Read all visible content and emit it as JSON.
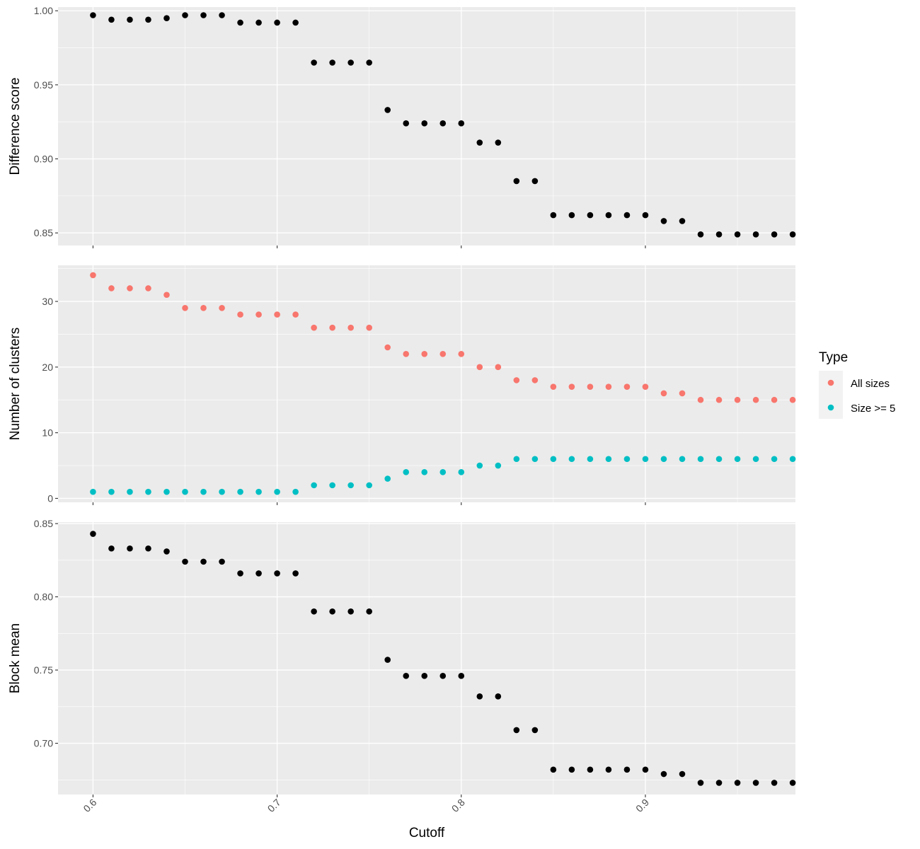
{
  "chart_data": {
    "type": "scatter",
    "xlabel": "Cutoff",
    "x_ticks": [
      "0.6",
      "0.7",
      "0.8",
      "0.9"
    ],
    "x_tick_values": [
      0.6,
      0.7,
      0.8,
      0.9
    ],
    "xlim": [
      0.581,
      0.9815
    ],
    "x": [
      0.6,
      0.61,
      0.62,
      0.63,
      0.64,
      0.65,
      0.66,
      0.67,
      0.68,
      0.69,
      0.7,
      0.71,
      0.72,
      0.73,
      0.74,
      0.75,
      0.76,
      0.77,
      0.78,
      0.79,
      0.8,
      0.81,
      0.82,
      0.83,
      0.84,
      0.85,
      0.86,
      0.87,
      0.88,
      0.89,
      0.9,
      0.91,
      0.92,
      0.93,
      0.94,
      0.95,
      0.96,
      0.97,
      0.98
    ],
    "panels": [
      {
        "ylabel": "Difference score",
        "y_ticks": [
          "0.85",
          "0.90",
          "0.95",
          "1.00"
        ],
        "y_tick_values": [
          0.85,
          0.9,
          0.95,
          1.0
        ],
        "ylim": [
          0.8415,
          1.0025
        ],
        "series": [
          {
            "color": "#000000",
            "values": [
              0.997,
              0.994,
              0.994,
              0.994,
              0.995,
              0.997,
              0.997,
              0.997,
              0.992,
              0.992,
              0.992,
              0.992,
              0.965,
              0.965,
              0.965,
              0.965,
              0.933,
              0.924,
              0.924,
              0.924,
              0.924,
              0.911,
              0.911,
              0.885,
              0.885,
              0.862,
              0.862,
              0.862,
              0.862,
              0.862,
              0.862,
              0.858,
              0.858,
              0.849,
              0.849,
              0.849,
              0.849,
              0.849,
              0.849
            ]
          }
        ]
      },
      {
        "ylabel": "Number of clusters",
        "y_ticks": [
          "0",
          "10",
          "20",
          "30"
        ],
        "y_tick_values": [
          0,
          10,
          20,
          30
        ],
        "ylim": [
          -0.6,
          35.5
        ],
        "series": [
          {
            "name": "All sizes",
            "color": "#F8766D",
            "values": [
              34,
              32,
              32,
              32,
              31,
              29,
              29,
              29,
              28,
              28,
              28,
              28,
              26,
              26,
              26,
              26,
              23,
              22,
              22,
              22,
              22,
              20,
              20,
              18,
              18,
              17,
              17,
              17,
              17,
              17,
              17,
              16,
              16,
              15,
              15,
              15,
              15,
              15,
              15
            ]
          },
          {
            "name": "Size >= 5",
            "color": "#00BFC4",
            "values": [
              1,
              1,
              1,
              1,
              1,
              1,
              1,
              1,
              1,
              1,
              1,
              1,
              2,
              2,
              2,
              2,
              3,
              4,
              4,
              4,
              4,
              5,
              5,
              6,
              6,
              6,
              6,
              6,
              6,
              6,
              6,
              6,
              6,
              6,
              6,
              6,
              6,
              6,
              6
            ]
          }
        ]
      },
      {
        "ylabel": "Block mean",
        "y_ticks": [
          "0.70",
          "0.75",
          "0.80",
          "0.85"
        ],
        "y_tick_values": [
          0.7,
          0.75,
          0.8,
          0.85
        ],
        "ylim": [
          0.665,
          0.851
        ],
        "series": [
          {
            "color": "#000000",
            "values": [
              0.843,
              0.833,
              0.833,
              0.833,
              0.831,
              0.824,
              0.824,
              0.824,
              0.816,
              0.816,
              0.816,
              0.816,
              0.79,
              0.79,
              0.79,
              0.79,
              0.757,
              0.746,
              0.746,
              0.746,
              0.746,
              0.732,
              0.732,
              0.709,
              0.709,
              0.682,
              0.682,
              0.682,
              0.682,
              0.682,
              0.682,
              0.679,
              0.679,
              0.673,
              0.673,
              0.673,
              0.673,
              0.673,
              0.673
            ]
          }
        ]
      }
    ],
    "legend": {
      "title": "Type",
      "position": "right",
      "entries": [
        {
          "label": "All sizes",
          "color": "#F8766D"
        },
        {
          "label": "Size >= 5",
          "color": "#00BFC4"
        }
      ]
    },
    "panel_background": "#EBEBEB",
    "grid": true
  }
}
